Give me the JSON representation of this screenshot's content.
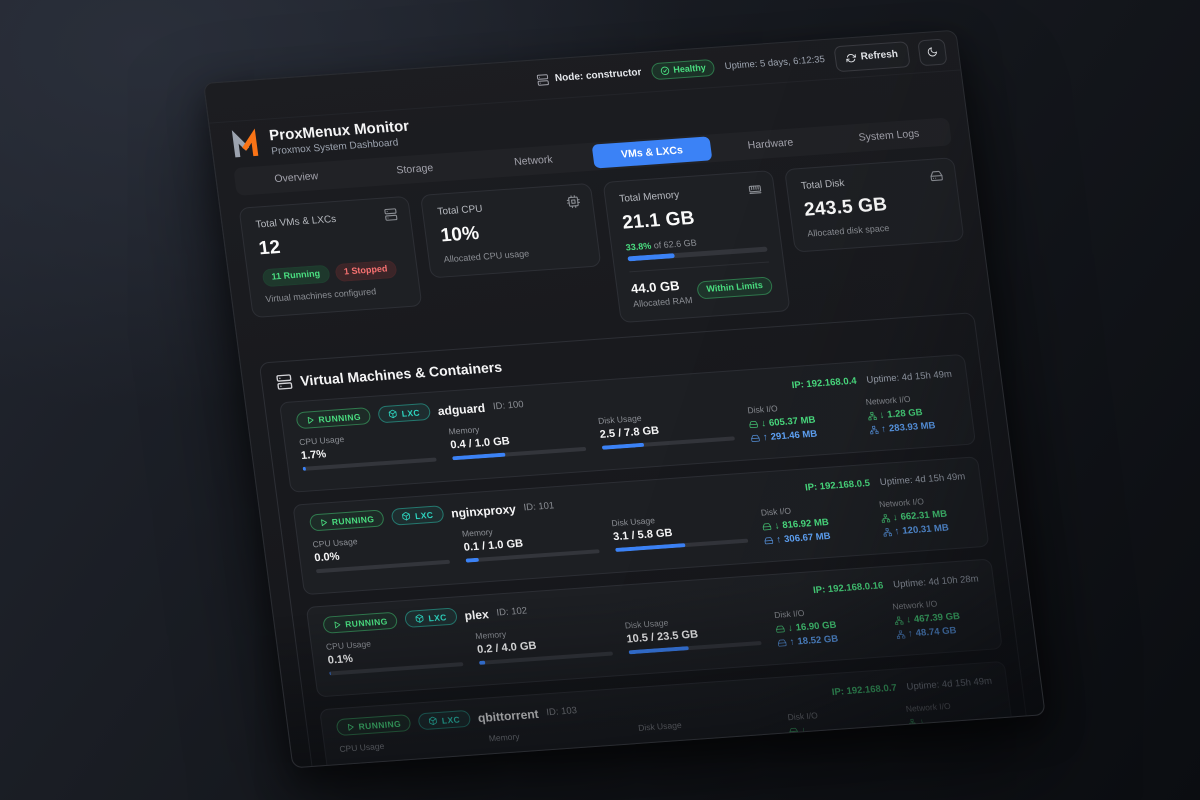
{
  "icons": {
    "arrow_down": "↓",
    "arrow_up": "↑"
  },
  "topbar": {
    "node_label": "Node: constructor",
    "health_badge": "Healthy",
    "uptime": "Uptime: 5 days, 6:12:35",
    "refresh_label": "Refresh"
  },
  "header": {
    "title": "ProxMenux Monitor",
    "subtitle": "Proxmox System Dashboard"
  },
  "tabs": [
    {
      "label": "Overview",
      "active": false
    },
    {
      "label": "Storage",
      "active": false
    },
    {
      "label": "Network",
      "active": false
    },
    {
      "label": "VMs & LXCs",
      "active": true
    },
    {
      "label": "Hardware",
      "active": false
    },
    {
      "label": "System Logs",
      "active": false
    }
  ],
  "stat_cards": [
    {
      "title": "Total VMs & LXCs",
      "value": "12",
      "badges": [
        {
          "label": "11 Running"
        },
        {
          "label": "1 Stopped"
        }
      ],
      "caption": "Virtual machines configured"
    },
    {
      "title": "Total CPU",
      "value": "10%",
      "caption": "Allocated CPU usage"
    },
    {
      "title": "Total Memory",
      "value": "21.1 GB",
      "progress": {
        "percent_label": "33.8%",
        "of_label": "of 62.6 GB",
        "percent": 33.8
      },
      "alloc_value": "44.0 GB",
      "alloc_caption": "Allocated RAM",
      "limit_badge": "Within Limits"
    },
    {
      "title": "Total Disk",
      "value": "243.5 GB",
      "caption": "Allocated disk space"
    }
  ],
  "vm_section": {
    "title": "Virtual Machines & Containers",
    "labels": {
      "cpu": "CPU Usage",
      "memory": "Memory",
      "disk": "Disk Usage",
      "disk_io": "Disk I/O",
      "net_io": "Network I/O"
    },
    "rows": [
      {
        "status": "RUNNING",
        "type": "LXC",
        "name": "adguard",
        "id": "ID: 100",
        "ip": "IP: 192.168.0.4",
        "uptime": "Uptime: 4d 15h 49m",
        "cpu": {
          "value": "1.7%",
          "pct": 2
        },
        "memory": {
          "value": "0.4 / 1.0 GB",
          "pct": 40
        },
        "disk": {
          "value": "2.5 / 7.8 GB",
          "pct": 32
        },
        "disk_io": {
          "down": "605.37 MB",
          "up": "291.46 MB"
        },
        "net_io": {
          "down": "1.28 GB",
          "up": "283.93 MB"
        }
      },
      {
        "status": "RUNNING",
        "type": "LXC",
        "name": "nginxproxy",
        "id": "ID: 101",
        "ip": "IP: 192.168.0.5",
        "uptime": "Uptime: 4d 15h 49m",
        "cpu": {
          "value": "0.0%",
          "pct": 0
        },
        "memory": {
          "value": "0.1 / 1.0 GB",
          "pct": 10
        },
        "disk": {
          "value": "3.1 / 5.8 GB",
          "pct": 53
        },
        "disk_io": {
          "down": "816.92 MB",
          "up": "306.67 MB"
        },
        "net_io": {
          "down": "662.31 MB",
          "up": "120.31 MB"
        }
      },
      {
        "status": "RUNNING",
        "type": "LXC",
        "name": "plex",
        "id": "ID: 102",
        "ip": "IP: 192.168.0.16",
        "uptime": "Uptime: 4d 10h 28m",
        "cpu": {
          "value": "0.1%",
          "pct": 1
        },
        "memory": {
          "value": "0.2 / 4.0 GB",
          "pct": 5
        },
        "disk": {
          "value": "10.5 / 23.5 GB",
          "pct": 45
        },
        "disk_io": {
          "down": "16.90 GB",
          "up": "18.52 GB"
        },
        "net_io": {
          "down": "467.39 GB",
          "up": "48.74 GB"
        }
      },
      {
        "status": "RUNNING",
        "type": "LXC",
        "name": "qbittorrent",
        "id": "ID: 103",
        "ip": "IP: 192.168.0.7",
        "uptime": "Uptime: 4d 15h 49m",
        "cpu": {
          "value": "",
          "pct": 0
        },
        "memory": {
          "value": "",
          "pct": 0
        },
        "disk": {
          "value": "",
          "pct": 0
        },
        "disk_io": {
          "down": "",
          "up": ""
        },
        "net_io": {
          "down": "",
          "up": ""
        }
      }
    ]
  }
}
